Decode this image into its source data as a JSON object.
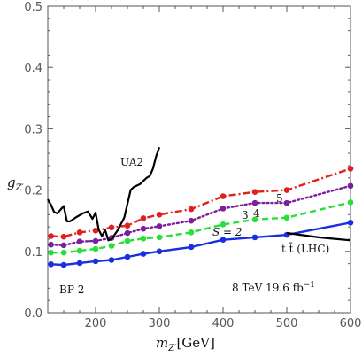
{
  "chart_data": {
    "type": "line",
    "xlabel_var": "m",
    "xlabel_sub": "Z′",
    "xlabel_unit": "[GeV]",
    "ylabel_var": "g",
    "ylabel_sub": "Z′",
    "xlim": [
      125,
      600
    ],
    "ylim": [
      0,
      0.5
    ],
    "xticks": [
      200,
      300,
      400,
      500,
      600
    ],
    "yticks": [
      0.0,
      0.1,
      0.2,
      0.3,
      0.4,
      0.5
    ],
    "xtick_labels": [
      "200",
      "300",
      "400",
      "500",
      "600"
    ],
    "ytick_labels": [
      "0.0",
      "0.1",
      "0.2",
      "0.3",
      "0.4",
      "0.5"
    ],
    "series": [
      {
        "label": "S = 2",
        "color": "#1a2fe0",
        "dash": "solid",
        "markers": true,
        "x": [
          130,
          150,
          175,
          200,
          225,
          250,
          275,
          300,
          350,
          400,
          450,
          500,
          600
        ],
        "y": [
          0.079,
          0.078,
          0.081,
          0.084,
          0.086,
          0.091,
          0.096,
          0.1,
          0.107,
          0.119,
          0.123,
          0.127,
          0.147
        ]
      },
      {
        "label": "3",
        "color": "#27e03a",
        "dash": "dashed",
        "markers": true,
        "x": [
          130,
          150,
          175,
          200,
          225,
          250,
          275,
          300,
          350,
          400,
          450,
          500,
          600
        ],
        "y": [
          0.098,
          0.098,
          0.101,
          0.104,
          0.109,
          0.117,
          0.121,
          0.123,
          0.131,
          0.144,
          0.152,
          0.155,
          0.18
        ]
      },
      {
        "label": "4",
        "color": "#7a1f9e",
        "dash": "dotted",
        "markers": true,
        "x": [
          130,
          150,
          175,
          200,
          225,
          250,
          275,
          300,
          350,
          400,
          450,
          500,
          600
        ],
        "y": [
          0.111,
          0.11,
          0.116,
          0.117,
          0.122,
          0.13,
          0.137,
          0.141,
          0.15,
          0.17,
          0.179,
          0.179,
          0.207
        ]
      },
      {
        "label": "5",
        "color": "#e0201e",
        "dash": "dashdot",
        "markers": true,
        "x": [
          130,
          150,
          175,
          200,
          225,
          250,
          275,
          300,
          350,
          400,
          450,
          500,
          600
        ],
        "y": [
          0.125,
          0.124,
          0.131,
          0.134,
          0.139,
          0.142,
          0.154,
          0.16,
          0.169,
          0.19,
          0.197,
          0.2,
          0.235
        ]
      },
      {
        "label": "UA2",
        "color": "#000000",
        "dash": "solid",
        "markers": false,
        "x": [
          125,
          130,
          135,
          140,
          145,
          150,
          155,
          160,
          170,
          180,
          188,
          195,
          200,
          205,
          210,
          215,
          220,
          225,
          235,
          245,
          255,
          260,
          270,
          280,
          285,
          290,
          295,
          300
        ],
        "y": [
          0.185,
          0.176,
          0.164,
          0.162,
          0.168,
          0.174,
          0.149,
          0.149,
          0.156,
          0.162,
          0.165,
          0.153,
          0.163,
          0.135,
          0.125,
          0.135,
          0.118,
          0.12,
          0.135,
          0.155,
          0.2,
          0.205,
          0.21,
          0.22,
          0.223,
          0.235,
          0.255,
          0.27
        ]
      },
      {
        "label": "t t̄ (LHC)",
        "color": "#000000",
        "dash": "solid",
        "markers": false,
        "x": [
          500,
          550,
          600
        ],
        "y": [
          0.13,
          0.123,
          0.118
        ]
      }
    ],
    "annotations": {
      "ua2": "UA2",
      "s2": "S = 2",
      "s3": "3",
      "s4": "4",
      "s5": "5",
      "ttbar": "t t̄ (LHC)",
      "bp": "BP 2",
      "lumi": "8 TeV 19.6 fb",
      "lumi_sup": "−1"
    }
  }
}
